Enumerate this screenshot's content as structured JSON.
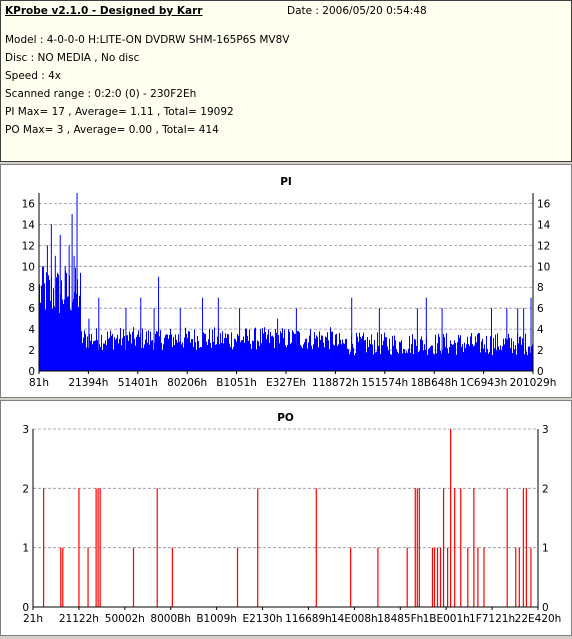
{
  "header": {
    "title": "KProbe v2.1.0 - Designed by Karr",
    "date": "Date : 2006/05/20 0:54:48",
    "model": "Model : 4-0-0-0 H:LITE-ON DVDRW SHM-165P6S MV8V",
    "disc": "Disc : NO MEDIA , No disc",
    "speed": "Speed : 4x",
    "range": "Scanned range : 0:2:0 (0) - 230F2Eh",
    "pi_summary": "PI Max= 17 , Average= 1.11 , Total= 19092",
    "po_summary": "PO Max= 3 , Average= 0.00 , Total= 414"
  },
  "chart_data": [
    {
      "type": "bar",
      "title": "PI",
      "ylim": [
        0,
        17
      ],
      "yticks": [
        0,
        2,
        4,
        6,
        8,
        10,
        12,
        14,
        16
      ],
      "xticks": [
        "81h",
        "21394h",
        "51401h",
        "80206h",
        "B1051h",
        "E327Eh",
        "118872h",
        "151574h",
        "18B648h",
        "1C6943h",
        "201029h"
      ],
      "series_color": "#0000ff",
      "grid": true,
      "max": 17,
      "average": 1.11,
      "spikes": [
        {
          "pos": 0.0,
          "value": 5
        },
        {
          "pos": 0.008,
          "value": 10
        },
        {
          "pos": 0.016,
          "value": 12
        },
        {
          "pos": 0.024,
          "value": 14
        },
        {
          "pos": 0.032,
          "value": 11
        },
        {
          "pos": 0.042,
          "value": 13
        },
        {
          "pos": 0.052,
          "value": 10
        },
        {
          "pos": 0.06,
          "value": 12
        },
        {
          "pos": 0.066,
          "value": 15
        },
        {
          "pos": 0.07,
          "value": 11
        },
        {
          "pos": 0.076,
          "value": 17
        },
        {
          "pos": 0.1,
          "value": 5
        },
        {
          "pos": 0.12,
          "value": 7
        },
        {
          "pos": 0.175,
          "value": 6
        },
        {
          "pos": 0.205,
          "value": 7
        },
        {
          "pos": 0.232,
          "value": 6
        },
        {
          "pos": 0.241,
          "value": 9
        },
        {
          "pos": 0.285,
          "value": 6
        },
        {
          "pos": 0.33,
          "value": 7
        },
        {
          "pos": 0.362,
          "value": 7
        },
        {
          "pos": 0.405,
          "value": 6
        },
        {
          "pos": 0.482,
          "value": 5
        },
        {
          "pos": 0.52,
          "value": 6
        },
        {
          "pos": 0.632,
          "value": 7
        },
        {
          "pos": 0.688,
          "value": 6
        },
        {
          "pos": 0.765,
          "value": 6
        },
        {
          "pos": 0.783,
          "value": 7
        },
        {
          "pos": 0.815,
          "value": 6
        },
        {
          "pos": 0.915,
          "value": 6
        },
        {
          "pos": 0.946,
          "value": 6
        },
        {
          "pos": 0.968,
          "value": 6
        },
        {
          "pos": 0.98,
          "value": 6
        },
        {
          "pos": 0.995,
          "value": 7
        }
      ]
    },
    {
      "type": "bar",
      "title": "PO",
      "ylim": [
        0,
        3
      ],
      "yticks": [
        0,
        1,
        2,
        3
      ],
      "xticks": [
        "21h",
        "21122h",
        "50002h",
        "8000Bh",
        "B1009h",
        "E2130h",
        "116689h",
        "14E008h",
        "18485Fh",
        "1BE001h",
        "1F7121h",
        "22E420h"
      ],
      "series_color": "#ff0000",
      "grid": true,
      "max": 3,
      "average": 0.0,
      "bars": [
        {
          "pos": 0.02,
          "value": 2
        },
        {
          "pos": 0.054,
          "value": 1
        },
        {
          "pos": 0.058,
          "value": 1
        },
        {
          "pos": 0.09,
          "value": 2
        },
        {
          "pos": 0.108,
          "value": 1
        },
        {
          "pos": 0.124,
          "value": 2
        },
        {
          "pos": 0.128,
          "value": 2
        },
        {
          "pos": 0.132,
          "value": 2
        },
        {
          "pos": 0.198,
          "value": 1
        },
        {
          "pos": 0.245,
          "value": 2
        },
        {
          "pos": 0.275,
          "value": 1
        },
        {
          "pos": 0.404,
          "value": 1
        },
        {
          "pos": 0.444,
          "value": 2
        },
        {
          "pos": 0.56,
          "value": 2
        },
        {
          "pos": 0.628,
          "value": 1
        },
        {
          "pos": 0.682,
          "value": 1
        },
        {
          "pos": 0.74,
          "value": 1
        },
        {
          "pos": 0.756,
          "value": 2
        },
        {
          "pos": 0.76,
          "value": 2
        },
        {
          "pos": 0.764,
          "value": 2
        },
        {
          "pos": 0.79,
          "value": 1
        },
        {
          "pos": 0.794,
          "value": 1
        },
        {
          "pos": 0.8,
          "value": 1
        },
        {
          "pos": 0.806,
          "value": 1
        },
        {
          "pos": 0.812,
          "value": 2
        },
        {
          "pos": 0.82,
          "value": 1
        },
        {
          "pos": 0.826,
          "value": 3
        },
        {
          "pos": 0.834,
          "value": 2
        },
        {
          "pos": 0.846,
          "value": 2
        },
        {
          "pos": 0.86,
          "value": 1
        },
        {
          "pos": 0.872,
          "value": 2
        },
        {
          "pos": 0.88,
          "value": 1
        },
        {
          "pos": 0.892,
          "value": 1
        },
        {
          "pos": 0.938,
          "value": 2
        },
        {
          "pos": 0.955,
          "value": 1
        },
        {
          "pos": 0.962,
          "value": 1
        },
        {
          "pos": 0.97,
          "value": 2
        },
        {
          "pos": 0.976,
          "value": 2
        },
        {
          "pos": 0.985,
          "value": 1
        }
      ]
    }
  ]
}
